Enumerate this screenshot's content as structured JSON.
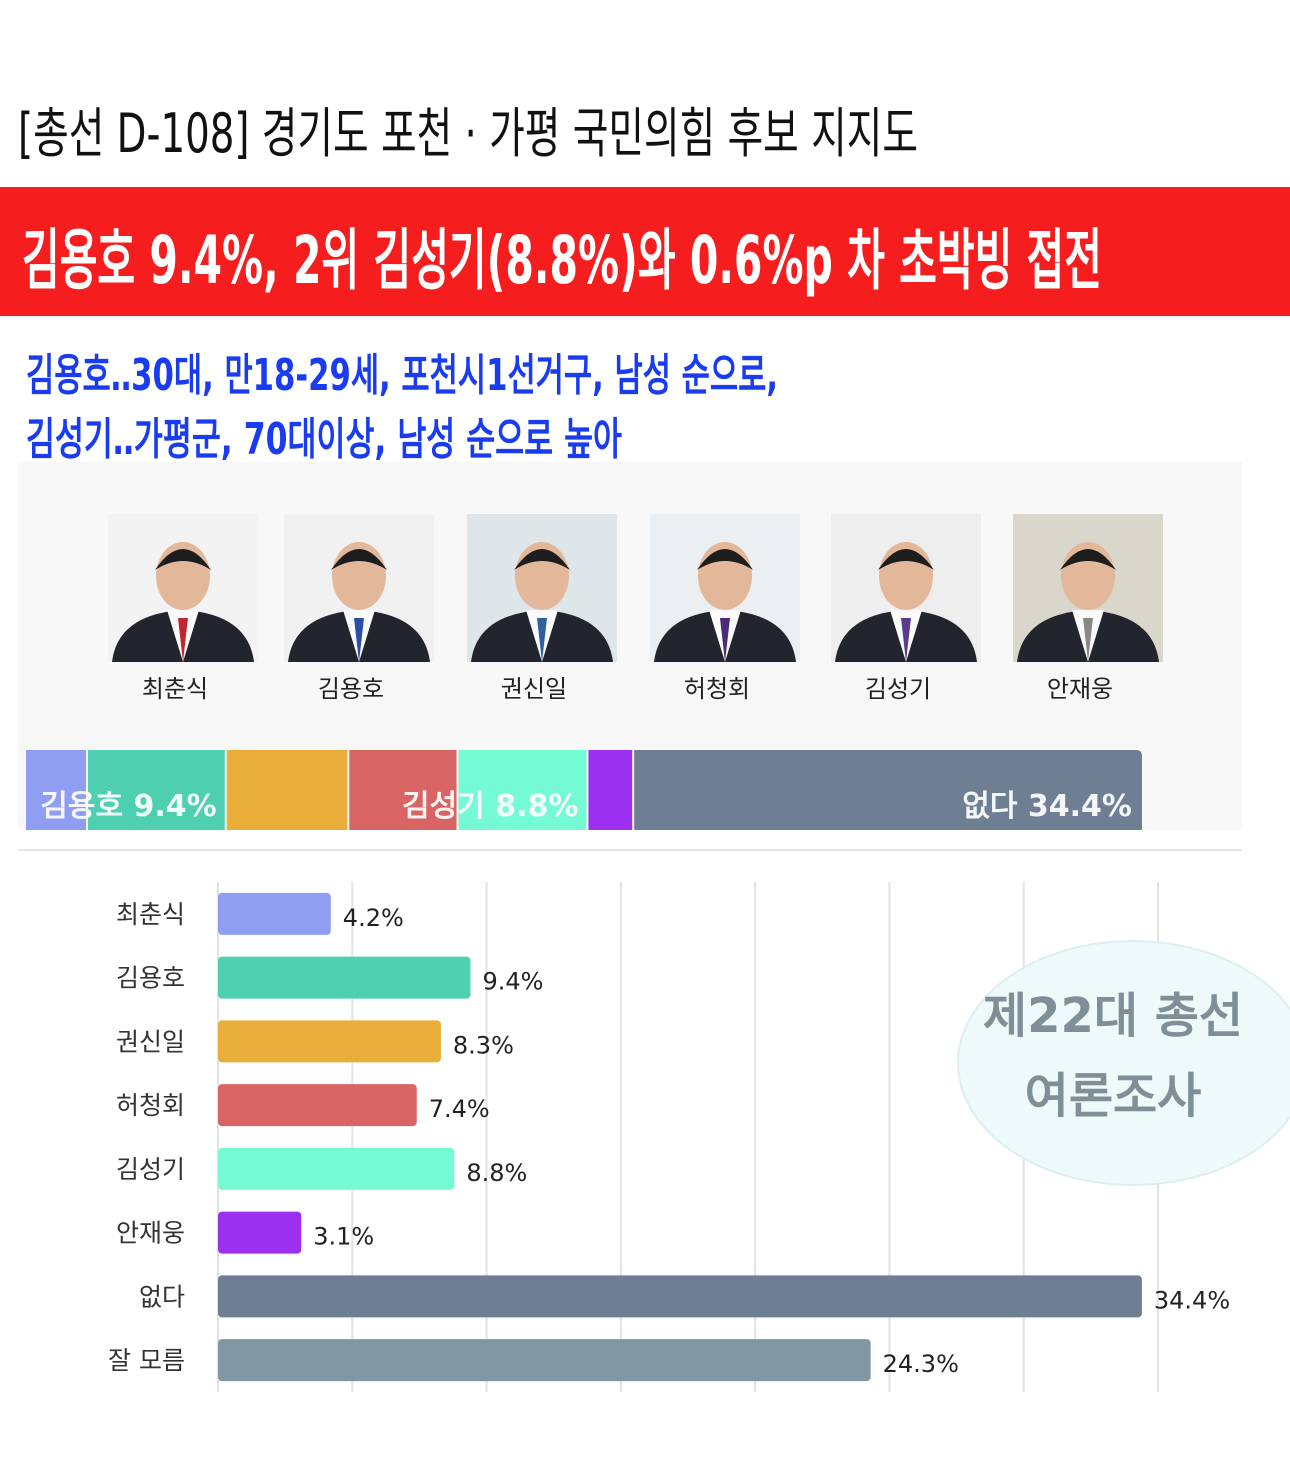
{
  "header": {
    "title": "[총선 D-108] 경기도 포천 · 가평 국민의힘 후보 지지도",
    "headline": "김용호 9.4%, 2위 김성기(8.8%)와 0.6%p 차 초박빙 접전",
    "subheadlines": [
      "김용호‥30대, 만18-29세, 포천시1선거구, 남성 순으로,",
      "김성기‥가평군, 70대이상, 남성 순으로 높아"
    ]
  },
  "candidates": [
    "최춘식",
    "김용호",
    "권신일",
    "허청회",
    "김성기",
    "안재웅"
  ],
  "badge": [
    "제22대 총선",
    "여론조사"
  ],
  "chart_data": [
    {
      "type": "stacked_bar",
      "values": [
        4.2,
        9.4,
        8.3,
        7.4,
        8.8,
        3.1,
        34.4
      ],
      "value_labels": [
        null,
        "김용호 9.4%",
        null,
        null,
        "김성기 8.8%",
        null,
        "없다 34.4%"
      ],
      "colors": [
        "#8f9ef0",
        "#4dcfb0",
        "#e9ad3a",
        "#d96464",
        "#74fbd3",
        "#9b30f0",
        "#6e7f94"
      ],
      "xlim": [
        0,
        75.6
      ]
    },
    {
      "type": "hbar",
      "categories": [
        "최춘식",
        "김용호",
        "권신일",
        "허청회",
        "김성기",
        "안재웅",
        "없다",
        "잘 모름"
      ],
      "values": [
        4.2,
        9.4,
        8.3,
        7.4,
        8.8,
        3.1,
        34.4,
        24.3
      ],
      "value_labels": [
        "4.2%",
        "9.4%",
        "8.3%",
        "7.4%",
        "8.8%",
        "3.1%",
        "34.4%",
        "24.3%"
      ],
      "colors": [
        "#8f9ef0",
        "#4dcfb0",
        "#e9ad3a",
        "#d96464",
        "#74fbd3",
        "#9b30f0",
        "#6e7f94",
        "#7f97a0"
      ],
      "xlim": [
        0,
        35
      ],
      "xticks": [
        0,
        5,
        10,
        15,
        20,
        25,
        30,
        35
      ],
      "grid": true
    }
  ]
}
